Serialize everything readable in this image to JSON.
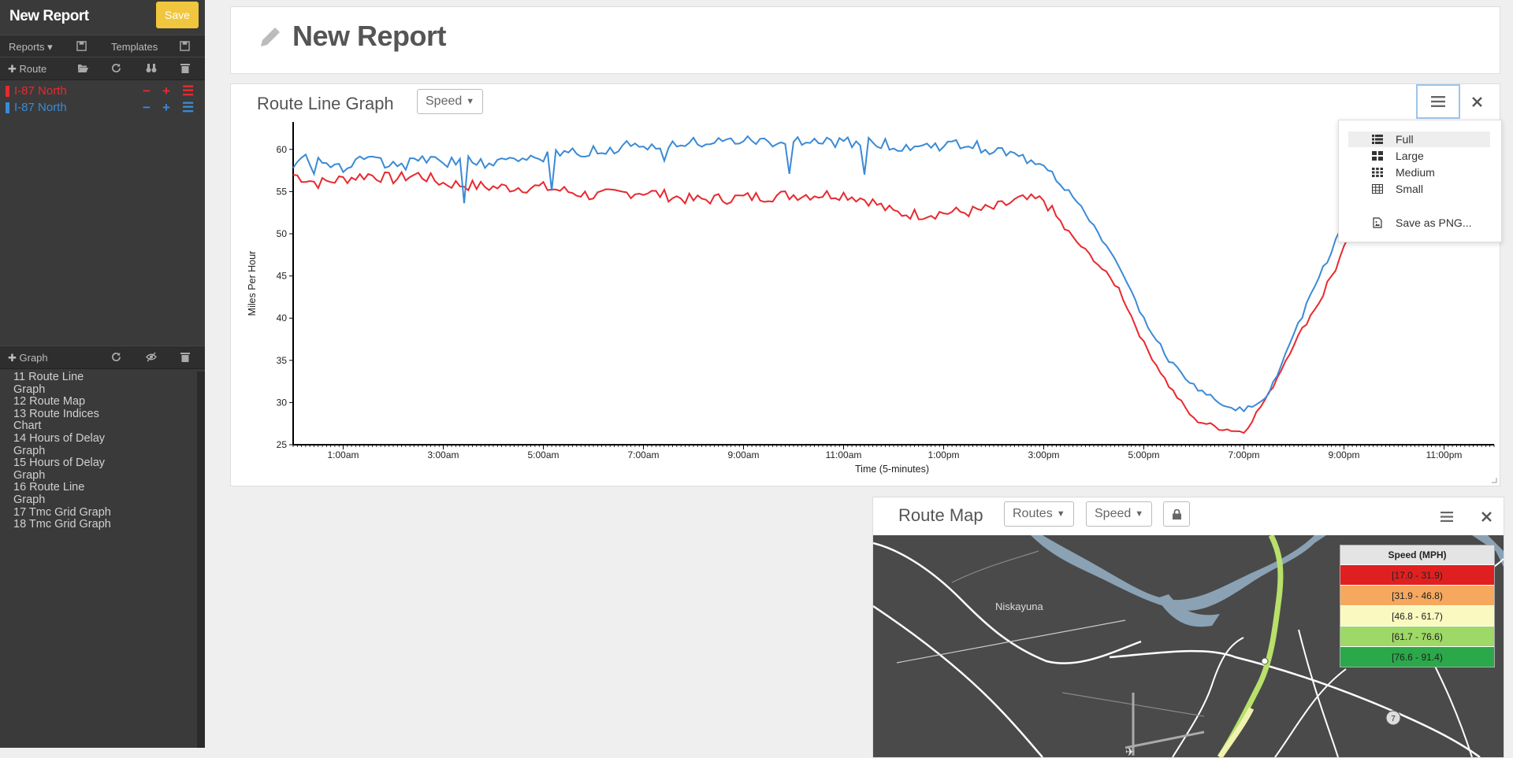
{
  "sidebar": {
    "title": "New Report",
    "save_label": "Save",
    "reports_label": "Reports",
    "templates_label": "Templates",
    "route_label": "Route",
    "graph_label": "Graph",
    "routes": [
      {
        "name": "I-87 North",
        "color": "#e8292f"
      },
      {
        "name": "I-87 North",
        "color": "#3a8ad6"
      }
    ],
    "graphs": [
      "11 Route Line Graph",
      "12 Route Map",
      "13 Route Indices Chart",
      "14 Hours of Delay Graph",
      "15 Hours of Delay Graph",
      "16 Route Line Graph",
      "17 Tmc Grid Graph",
      "18 Tmc Grid Graph"
    ]
  },
  "header": {
    "title": "New Report"
  },
  "graph_panel": {
    "title": "Route Line Graph",
    "dropdown": "Speed",
    "menu": {
      "items": [
        "Full",
        "Large",
        "Medium",
        "Small"
      ],
      "save_png": "Save as PNG...",
      "selected": "Full"
    }
  },
  "chart_data": {
    "type": "line",
    "xlabel": "Time (5-minutes)",
    "ylabel": "Miles Per Hour",
    "ylim": [
      25,
      62.5
    ],
    "yticks": [
      25,
      30,
      35,
      40,
      45,
      50,
      55,
      60
    ],
    "xlim": [
      0,
      24
    ],
    "xtick_labels": [
      "1:00am",
      "3:00am",
      "5:00am",
      "7:00am",
      "9:00am",
      "11:00am",
      "1:00pm",
      "3:00pm",
      "5:00pm",
      "7:00pm",
      "9:00pm",
      "11:00pm"
    ],
    "x_unit": "hours since midnight",
    "series": [
      {
        "name": "I-87 North",
        "color": "#e8292f",
        "points": [
          [
            0,
            57
          ],
          [
            0.5,
            56
          ],
          [
            1,
            56.5
          ],
          [
            1.5,
            57
          ],
          [
            2,
            56.5
          ],
          [
            2.5,
            57
          ],
          [
            3,
            56
          ],
          [
            4,
            55.5
          ],
          [
            5,
            55.5
          ],
          [
            6,
            54.5
          ],
          [
            7,
            55
          ],
          [
            8,
            54
          ],
          [
            9,
            54.3
          ],
          [
            10,
            54.6
          ],
          [
            11,
            54.7
          ],
          [
            11.5,
            54
          ],
          [
            12,
            52.5
          ],
          [
            12.5,
            52.3
          ],
          [
            13,
            52.5
          ],
          [
            13.5,
            52.6
          ],
          [
            14,
            53
          ],
          [
            14.5,
            54
          ],
          [
            15,
            54
          ],
          [
            15.5,
            50
          ],
          [
            16,
            47
          ],
          [
            16.5,
            43.5
          ],
          [
            17,
            37
          ],
          [
            17.5,
            32
          ],
          [
            18,
            28
          ],
          [
            18.5,
            27
          ],
          [
            19,
            26.5
          ],
          [
            19.5,
            31
          ],
          [
            20,
            37
          ],
          [
            20.5,
            42
          ],
          [
            21,
            48
          ],
          [
            21.5,
            53.5
          ],
          [
            22,
            55
          ],
          [
            22.5,
            56.5
          ],
          [
            23,
            57
          ],
          [
            23.5,
            56.5
          ],
          [
            24,
            56
          ]
        ]
      },
      {
        "name": "I-87 North",
        "color": "#3a8ad6",
        "points": [
          [
            0,
            58.5
          ],
          [
            0.5,
            59
          ],
          [
            1,
            58
          ],
          [
            1.5,
            59
          ],
          [
            2,
            58
          ],
          [
            2.5,
            58.5
          ],
          [
            3,
            58.5
          ],
          [
            4,
            58.5
          ],
          [
            5,
            59
          ],
          [
            6,
            60
          ],
          [
            7,
            60.5
          ],
          [
            8,
            60.7
          ],
          [
            9,
            61
          ],
          [
            10,
            60.8
          ],
          [
            11,
            60.8
          ],
          [
            11.5,
            61
          ],
          [
            12,
            60.5
          ],
          [
            12.5,
            60.3
          ],
          [
            13,
            60.5
          ],
          [
            13.5,
            60.5
          ],
          [
            14,
            60
          ],
          [
            14.5,
            59
          ],
          [
            15,
            58.5
          ],
          [
            15.5,
            55
          ],
          [
            16,
            51
          ],
          [
            16.5,
            46
          ],
          [
            17,
            40
          ],
          [
            17.5,
            35
          ],
          [
            18,
            32
          ],
          [
            18.5,
            30
          ],
          [
            19,
            29
          ],
          [
            19.5,
            31
          ],
          [
            20,
            38
          ],
          [
            20.5,
            45
          ],
          [
            21,
            51
          ],
          [
            21.5,
            55
          ],
          [
            22,
            58
          ],
          [
            22.5,
            59
          ],
          [
            23,
            58.5
          ],
          [
            23.5,
            57.5
          ],
          [
            24,
            58
          ]
        ]
      }
    ]
  },
  "map_panel": {
    "title": "Route Map",
    "routes_dd": "Routes",
    "speed_dd": "Speed",
    "place": "Niskayuna",
    "road_marker": "7",
    "legend": {
      "title": "Speed (MPH)",
      "rows": [
        {
          "label": "[17.0   -   31.9)",
          "color": "#e02020"
        },
        {
          "label": "[31.9   -   46.8)",
          "color": "#f6a85f"
        },
        {
          "label": "[46.8   -   61.7)",
          "color": "#fafac0"
        },
        {
          "label": "[61.7   -   76.6)",
          "color": "#9ed866"
        },
        {
          "label": "[76.6   -   91.4)",
          "color": "#2aa84a"
        }
      ]
    }
  }
}
